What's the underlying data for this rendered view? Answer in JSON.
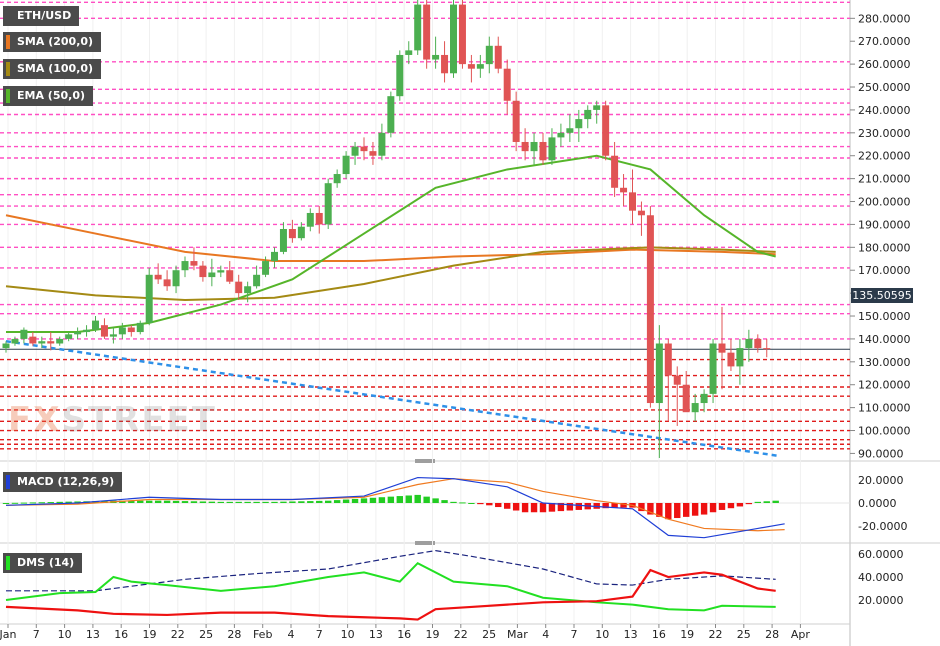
{
  "symbol": "ETH/USD",
  "watermark": {
    "part1": "FX",
    "part2": "STREET"
  },
  "indicators": {
    "sma200": {
      "label": "SMA (200,0)",
      "color": "#e87722"
    },
    "sma100": {
      "label": "SMA (100,0)",
      "color": "#a48a14"
    },
    "ema50": {
      "label": "EMA (50,0)",
      "color": "#56b52a"
    },
    "macd": {
      "label": "MACD (12,26,9)"
    },
    "dms": {
      "label": "DMS (14)"
    }
  },
  "last_price": "135.50595",
  "price_axis": [
    "280.0000",
    "270.0000",
    "260.0000",
    "250.0000",
    "240.0000",
    "230.0000",
    "220.0000",
    "210.0000",
    "200.0000",
    "190.0000",
    "180.0000",
    "170.0000",
    "160.0000",
    "150.0000",
    "140.0000",
    "130.0000",
    "120.0000",
    "110.0000",
    "100.0000",
    "90.0000"
  ],
  "macd_axis": [
    "20.0000",
    "0.0000",
    "-20.0000"
  ],
  "dms_axis": [
    "60.0000",
    "40.0000",
    "20.0000"
  ],
  "x_axis": [
    "Jan",
    "7",
    "10",
    "13",
    "16",
    "19",
    "22",
    "25",
    "28",
    "Feb",
    "4",
    "7",
    "10",
    "13",
    "16",
    "19",
    "22",
    "25",
    "Mar",
    "4",
    "7",
    "10",
    "13",
    "16",
    "19",
    "22",
    "25",
    "28",
    "Apr"
  ],
  "colors": {
    "up": "#4caf50",
    "down": "#e05454",
    "resistance": "#ff4fc3",
    "support": "#e01b1b",
    "trend": "#2e90e8",
    "macd_line": "#1f3fd6",
    "signal_line": "#f07a20",
    "hist_up": "#22cc22",
    "hist_down": "#ee1111",
    "di_plus": "#22e022",
    "di_minus": "#ee1111",
    "adx": "#1a237e"
  },
  "chart_data": {
    "type": "candlestick",
    "price_range": [
      88,
      288
    ],
    "macd_range": [
      -32,
      32
    ],
    "dms_range": [
      0,
      67
    ],
    "resistance_levels": [
      287,
      280,
      261,
      249,
      243,
      238,
      230,
      224,
      219,
      210,
      203,
      198,
      190,
      180,
      171,
      155,
      151,
      140
    ],
    "support_levels": [
      131,
      124,
      119,
      115,
      109,
      104,
      100,
      96,
      94,
      92
    ],
    "trend_line": {
      "from": {
        "x": 0,
        "y": 139
      },
      "to": {
        "x": 75,
        "y": 89
      }
    },
    "candles": [
      [
        0,
        136,
        139,
        134,
        138
      ],
      [
        1,
        138,
        141,
        137,
        140
      ],
      [
        2,
        140,
        145,
        138,
        144
      ],
      [
        3,
        141,
        143,
        137,
        138
      ],
      [
        4,
        138,
        141,
        136,
        139
      ],
      [
        5,
        139,
        143,
        135,
        138
      ],
      [
        6,
        138,
        141,
        137,
        140
      ],
      [
        7,
        140,
        143,
        139,
        142
      ],
      [
        8,
        142,
        145,
        140,
        143
      ],
      [
        9,
        143,
        146,
        141,
        144
      ],
      [
        10,
        144,
        150,
        143,
        148
      ],
      [
        11,
        146,
        149,
        140,
        141
      ],
      [
        12,
        141,
        145,
        138,
        142
      ],
      [
        13,
        142,
        147,
        140,
        145
      ],
      [
        14,
        145,
        146,
        141,
        143
      ],
      [
        15,
        143,
        148,
        142,
        147
      ],
      [
        16,
        147,
        171,
        146,
        168
      ],
      [
        17,
        168,
        173,
        164,
        166
      ],
      [
        18,
        166,
        170,
        161,
        163
      ],
      [
        19,
        163,
        172,
        160,
        170
      ],
      [
        20,
        170,
        176,
        167,
        174
      ],
      [
        21,
        174,
        180,
        170,
        172
      ],
      [
        22,
        172,
        174,
        165,
        167
      ],
      [
        23,
        167,
        175,
        163,
        169
      ],
      [
        24,
        169,
        172,
        167,
        170
      ],
      [
        25,
        170,
        174,
        164,
        165
      ],
      [
        26,
        165,
        168,
        157,
        160
      ],
      [
        27,
        160,
        165,
        156,
        163
      ],
      [
        28,
        163,
        172,
        162,
        168
      ],
      [
        29,
        168,
        176,
        167,
        174
      ],
      [
        30,
        174,
        180,
        171,
        178
      ],
      [
        31,
        178,
        191,
        177,
        188
      ],
      [
        32,
        188,
        192,
        182,
        184
      ],
      [
        33,
        184,
        191,
        183,
        189
      ],
      [
        34,
        189,
        197,
        187,
        195
      ],
      [
        35,
        195,
        198,
        186,
        190
      ],
      [
        36,
        190,
        210,
        188,
        208
      ],
      [
        37,
        208,
        214,
        206,
        212
      ],
      [
        38,
        212,
        222,
        210,
        220
      ],
      [
        39,
        220,
        226,
        216,
        224
      ],
      [
        40,
        224,
        228,
        218,
        222
      ],
      [
        41,
        222,
        226,
        216,
        220
      ],
      [
        42,
        220,
        234,
        218,
        230
      ],
      [
        43,
        230,
        248,
        228,
        246
      ],
      [
        44,
        246,
        266,
        244,
        264
      ],
      [
        45,
        264,
        270,
        260,
        266
      ],
      [
        46,
        266,
        288,
        264,
        286
      ],
      [
        47,
        286,
        288,
        258,
        262
      ],
      [
        48,
        262,
        272,
        258,
        264
      ],
      [
        49,
        264,
        270,
        252,
        256
      ],
      [
        50,
        256,
        288,
        254,
        286
      ],
      [
        51,
        286,
        288,
        258,
        260
      ],
      [
        52,
        260,
        264,
        252,
        258
      ],
      [
        53,
        258,
        264,
        254,
        260
      ],
      [
        54,
        260,
        272,
        256,
        268
      ],
      [
        55,
        268,
        272,
        256,
        258
      ],
      [
        56,
        258,
        262,
        238,
        244
      ],
      [
        57,
        244,
        248,
        222,
        226
      ],
      [
        58,
        226,
        232,
        218,
        222
      ],
      [
        59,
        222,
        230,
        216,
        226
      ],
      [
        60,
        226,
        230,
        216,
        218
      ],
      [
        61,
        218,
        232,
        216,
        228
      ],
      [
        62,
        228,
        234,
        224,
        230
      ],
      [
        63,
        230,
        238,
        226,
        232
      ],
      [
        64,
        232,
        240,
        226,
        236
      ],
      [
        65,
        236,
        242,
        232,
        240
      ],
      [
        66,
        240,
        244,
        234,
        242
      ],
      [
        67,
        242,
        244,
        218,
        220
      ],
      [
        68,
        220,
        226,
        202,
        206
      ],
      [
        69,
        206,
        212,
        198,
        204
      ],
      [
        70,
        204,
        214,
        190,
        196
      ],
      [
        71,
        196,
        200,
        185,
        194
      ],
      [
        72,
        194,
        198,
        110,
        112
      ],
      [
        73,
        112,
        146,
        88,
        138
      ],
      [
        74,
        138,
        140,
        104,
        124
      ],
      [
        75,
        124,
        128,
        102,
        120
      ],
      [
        76,
        120,
        126,
        110,
        108
      ],
      [
        77,
        108,
        116,
        104,
        112
      ],
      [
        78,
        112,
        118,
        108,
        116
      ],
      [
        79,
        116,
        140,
        112,
        138
      ],
      [
        80,
        138,
        154,
        118,
        134
      ],
      [
        81,
        134,
        140,
        126,
        128
      ],
      [
        82,
        128,
        140,
        120,
        136
      ],
      [
        83,
        136,
        144,
        130,
        140
      ],
      [
        84,
        140,
        142,
        134,
        136
      ],
      [
        85,
        136,
        140,
        132,
        135.5
      ]
    ],
    "sma200": [
      [
        0,
        194
      ],
      [
        10,
        186
      ],
      [
        20,
        178
      ],
      [
        30,
        174
      ],
      [
        40,
        174
      ],
      [
        50,
        176
      ],
      [
        60,
        177
      ],
      [
        70,
        179
      ],
      [
        80,
        178
      ],
      [
        86,
        177
      ]
    ],
    "sma100": [
      [
        0,
        163
      ],
      [
        10,
        159
      ],
      [
        20,
        157
      ],
      [
        30,
        158
      ],
      [
        40,
        164
      ],
      [
        50,
        172
      ],
      [
        60,
        178
      ],
      [
        66,
        179
      ],
      [
        72,
        180
      ],
      [
        80,
        179
      ],
      [
        86,
        178
      ]
    ],
    "ema50": [
      [
        0,
        143
      ],
      [
        8,
        143
      ],
      [
        16,
        147
      ],
      [
        24,
        155
      ],
      [
        32,
        166
      ],
      [
        40,
        186
      ],
      [
        48,
        206
      ],
      [
        56,
        214
      ],
      [
        66,
        220
      ],
      [
        72,
        214
      ],
      [
        78,
        194
      ],
      [
        84,
        178
      ],
      [
        86,
        176
      ]
    ],
    "macd_line": [
      [
        0,
        -2
      ],
      [
        8,
        0
      ],
      [
        16,
        5
      ],
      [
        24,
        3
      ],
      [
        32,
        3
      ],
      [
        40,
        6
      ],
      [
        46,
        22
      ],
      [
        50,
        21
      ],
      [
        56,
        14
      ],
      [
        60,
        0
      ],
      [
        66,
        -3
      ],
      [
        70,
        -5
      ],
      [
        74,
        -28
      ],
      [
        78,
        -30
      ],
      [
        84,
        -22
      ],
      [
        87,
        -18
      ]
    ],
    "signal_line": [
      [
        0,
        -2
      ],
      [
        8,
        -1
      ],
      [
        16,
        3
      ],
      [
        24,
        3
      ],
      [
        32,
        3
      ],
      [
        40,
        5
      ],
      [
        46,
        16
      ],
      [
        50,
        21
      ],
      [
        56,
        18
      ],
      [
        60,
        10
      ],
      [
        66,
        2
      ],
      [
        70,
        -2
      ],
      [
        74,
        -14
      ],
      [
        78,
        -22
      ],
      [
        84,
        -24
      ],
      [
        87,
        -23
      ]
    ],
    "histogram": [
      [
        0,
        0
      ],
      [
        6,
        1
      ],
      [
        12,
        2
      ],
      [
        18,
        2
      ],
      [
        24,
        1
      ],
      [
        30,
        1
      ],
      [
        36,
        2
      ],
      [
        40,
        4
      ],
      [
        44,
        6
      ],
      [
        46,
        7
      ],
      [
        48,
        4
      ],
      [
        50,
        1
      ],
      [
        52,
        0
      ],
      [
        54,
        -2
      ],
      [
        56,
        -5
      ],
      [
        58,
        -8
      ],
      [
        60,
        -8
      ],
      [
        64,
        -6
      ],
      [
        68,
        -4
      ],
      [
        70,
        -4
      ],
      [
        72,
        -10
      ],
      [
        74,
        -14
      ],
      [
        76,
        -12
      ],
      [
        78,
        -10
      ],
      [
        80,
        -6
      ],
      [
        82,
        -3
      ],
      [
        84,
        1
      ],
      [
        86,
        2
      ]
    ],
    "adx": [
      [
        0,
        28
      ],
      [
        10,
        28
      ],
      [
        20,
        38
      ],
      [
        28,
        43
      ],
      [
        36,
        47
      ],
      [
        44,
        58
      ],
      [
        48,
        63
      ],
      [
        52,
        58
      ],
      [
        60,
        47
      ],
      [
        66,
        34
      ],
      [
        70,
        33
      ],
      [
        74,
        38
      ],
      [
        80,
        41
      ],
      [
        86,
        38
      ]
    ],
    "di_plus": [
      [
        0,
        20
      ],
      [
        6,
        26
      ],
      [
        10,
        27
      ],
      [
        12,
        40
      ],
      [
        14,
        36
      ],
      [
        18,
        33
      ],
      [
        24,
        28
      ],
      [
        30,
        32
      ],
      [
        36,
        40
      ],
      [
        40,
        44
      ],
      [
        44,
        36
      ],
      [
        46,
        52
      ],
      [
        50,
        36
      ],
      [
        56,
        32
      ],
      [
        60,
        22
      ],
      [
        66,
        18
      ],
      [
        70,
        16
      ],
      [
        74,
        12
      ],
      [
        78,
        11
      ],
      [
        80,
        15
      ],
      [
        86,
        14
      ]
    ],
    "di_minus": [
      [
        0,
        14
      ],
      [
        8,
        11
      ],
      [
        12,
        8
      ],
      [
        18,
        7
      ],
      [
        24,
        9
      ],
      [
        30,
        9
      ],
      [
        36,
        6
      ],
      [
        40,
        5
      ],
      [
        44,
        4
      ],
      [
        46,
        3
      ],
      [
        48,
        12
      ],
      [
        52,
        14
      ],
      [
        56,
        16
      ],
      [
        60,
        18
      ],
      [
        66,
        19
      ],
      [
        70,
        23
      ],
      [
        72,
        46
      ],
      [
        74,
        40
      ],
      [
        78,
        44
      ],
      [
        80,
        42
      ],
      [
        84,
        30
      ],
      [
        86,
        28
      ]
    ]
  }
}
